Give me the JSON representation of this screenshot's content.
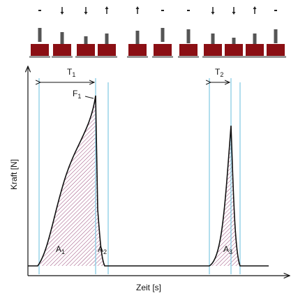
{
  "axes": {
    "y_label": "Kraft [N]",
    "x_label": "Zeit [s]"
  },
  "labels": {
    "t1": {
      "base": "T",
      "sub": "1"
    },
    "t2": {
      "base": "T",
      "sub": "2"
    },
    "f1": {
      "base": "F",
      "sub": "1"
    },
    "a1": {
      "base": "A",
      "sub": "1"
    },
    "a2": {
      "base": "A",
      "sub": "2"
    },
    "a3": {
      "base": "A",
      "sub": "3"
    }
  }
}
